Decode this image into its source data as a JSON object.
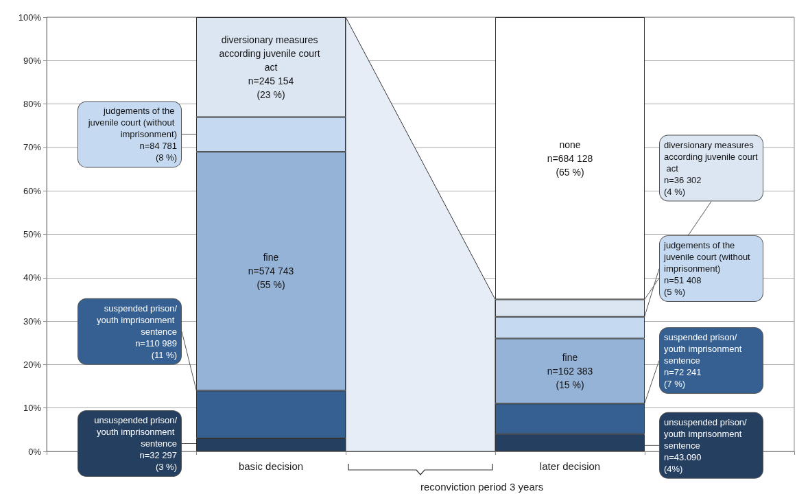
{
  "chart_data": {
    "type": "bar",
    "stacked": true,
    "grid": "y",
    "categories": [
      null,
      "basic decision",
      null,
      "later decision",
      null
    ],
    "ylim": [
      0,
      100
    ],
    "yticks": [
      {
        "value": 0,
        "label": "0%"
      },
      {
        "value": 10,
        "label": "10%"
      },
      {
        "value": 20,
        "label": "20%"
      },
      {
        "value": 30,
        "label": "30%"
      },
      {
        "value": 40,
        "label": "40%"
      },
      {
        "value": 50,
        "label": "50%"
      },
      {
        "value": 60,
        "label": "60%"
      },
      {
        "value": 70,
        "label": "70%"
      },
      {
        "value": 80,
        "label": "80%"
      },
      {
        "value": 90,
        "label": "90%"
      },
      {
        "value": 100,
        "label": "100%"
      }
    ],
    "annotations": [
      "reconviction period 3 years"
    ],
    "series": [
      {
        "color": "#243f60",
        "values": [
          null,
          3,
          null,
          4,
          null
        ],
        "value_labels": [
          null,
          "unsuspended prison/youth imprisonment sentence\nn=32 297\n(3 %)",
          null,
          "unsuspended prison/youth imprisonment sentence\nn=43.090\n(4%)",
          null
        ]
      },
      {
        "color": "#376092",
        "values": [
          null,
          11,
          null,
          7,
          null
        ],
        "value_labels": [
          null,
          "suspended prison/youth imprisonment sentence\nn=110 989\n(11 %)",
          null,
          "suspended prison/youth imprisonment sentence\nn=72 241\n(7 %)",
          null
        ]
      },
      {
        "color": "#95b3d7",
        "values": [
          null,
          55,
          null,
          15,
          null
        ],
        "value_labels": [
          null,
          "fine\nn=574 743\n(55 %)",
          null,
          "fine\nn=162 383\n(15 %)",
          null
        ]
      },
      {
        "color": "#c5d9f1",
        "values": [
          null,
          8,
          null,
          5,
          null
        ],
        "value_labels": [
          null,
          "judgements of the juvenile court (without imprisonment)\nn=84 781\n(8 %)",
          null,
          "judgements of the juvenile court (without imprisonment)\nn=51 408\n(5 %)",
          null
        ]
      },
      {
        "color": "#dce6f2",
        "values": [
          null,
          23,
          null,
          4,
          null
        ],
        "value_labels": [
          null,
          "diversionary measures according juvenile court act\nn=245 154\n(23 %)",
          null,
          "diversionary measures according juvenile court act\nn=36 302\n(4 %)",
          null
        ]
      },
      {
        "color": "#ffffff",
        "values": [
          null,
          null,
          null,
          65,
          null
        ],
        "value_labels": [
          null,
          null,
          null,
          "none\nn=684 128\n(65 %)",
          null
        ]
      }
    ]
  }
}
